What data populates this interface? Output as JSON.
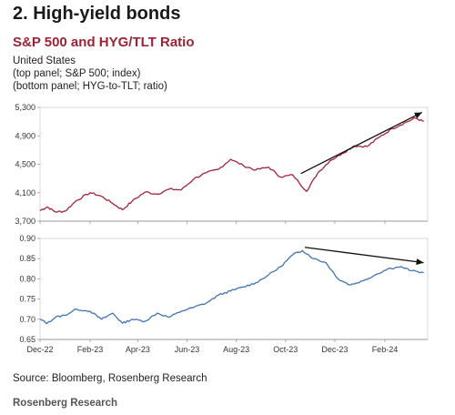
{
  "header": {
    "section_title": "2. High-yield bonds",
    "chart_title": "S&P 500 and HYG/TLT Ratio",
    "subtitle_lines": [
      "United States",
      "(top panel; S&P 500; index)",
      "(bottom panel; HYG-to-TLT; ratio)"
    ]
  },
  "footer": {
    "source": "Source: Bloomberg, Rosenberg Research",
    "brand": "Rosenberg Research"
  },
  "colors": {
    "title": "#9b2335",
    "spx_line": "#a3243b",
    "ratio_line": "#3f74b5",
    "trend_arrow": "#111111",
    "axis": "#999999"
  },
  "chart_data": [
    {
      "type": "line",
      "series": [
        {
          "x": [
            "2022-12-01",
            "2022-12-10",
            "2022-12-20",
            "2023-01-01",
            "2023-01-15",
            "2023-02-01",
            "2023-02-15",
            "2023-03-01",
            "2023-03-13",
            "2023-03-25",
            "2023-04-10",
            "2023-04-25",
            "2023-05-10",
            "2023-05-25",
            "2023-06-10",
            "2023-06-25",
            "2023-07-10",
            "2023-07-25",
            "2023-08-10",
            "2023-08-25",
            "2023-09-10",
            "2023-09-25",
            "2023-10-10",
            "2023-10-27",
            "2023-11-10",
            "2023-11-25",
            "2023-12-10",
            "2023-12-25",
            "2024-01-10",
            "2024-01-25",
            "2024-02-10",
            "2024-02-25",
            "2024-03-10",
            "2024-03-20"
          ],
          "values": [
            3850,
            3900,
            3830,
            3840,
            3990,
            4100,
            4050,
            3950,
            3860,
            3980,
            4110,
            4080,
            4150,
            4140,
            4300,
            4380,
            4430,
            4570,
            4480,
            4420,
            4460,
            4320,
            4350,
            4120,
            4380,
            4550,
            4650,
            4760,
            4750,
            4880,
            5000,
            5080,
            5150,
            5100
          ]
        }
      ],
      "xlim": [
        "2022-12-01",
        "2024-03-25"
      ],
      "ylim": [
        3700,
        5300
      ],
      "yticks": [
        "5,300",
        "4,900",
        "4,500",
        "4,100",
        "3,700"
      ],
      "trend_arrow": {
        "from": [
          "2023-10-20",
          4370
        ],
        "to": [
          "2024-03-18",
          5230
        ],
        "direction": "up"
      },
      "grid": false
    },
    {
      "type": "line",
      "series": [
        {
          "x": [
            "2022-12-01",
            "2022-12-10",
            "2022-12-20",
            "2023-01-01",
            "2023-01-15",
            "2023-02-01",
            "2023-02-15",
            "2023-03-01",
            "2023-03-13",
            "2023-03-25",
            "2023-04-10",
            "2023-04-25",
            "2023-05-10",
            "2023-05-25",
            "2023-06-10",
            "2023-06-25",
            "2023-07-10",
            "2023-07-25",
            "2023-08-10",
            "2023-08-25",
            "2023-09-10",
            "2023-09-25",
            "2023-10-10",
            "2023-10-22",
            "2023-11-05",
            "2023-11-20",
            "2023-12-05",
            "2023-12-20",
            "2024-01-05",
            "2024-01-20",
            "2024-02-05",
            "2024-02-20",
            "2024-03-05",
            "2024-03-20"
          ],
          "values": [
            0.7,
            0.69,
            0.705,
            0.71,
            0.725,
            0.72,
            0.7,
            0.715,
            0.69,
            0.7,
            0.695,
            0.715,
            0.705,
            0.72,
            0.73,
            0.74,
            0.76,
            0.77,
            0.78,
            0.79,
            0.81,
            0.83,
            0.86,
            0.87,
            0.85,
            0.84,
            0.8,
            0.785,
            0.795,
            0.81,
            0.825,
            0.83,
            0.82,
            0.815
          ]
        }
      ],
      "xlim": [
        "2022-12-01",
        "2024-03-25"
      ],
      "ylim": [
        0.65,
        0.9
      ],
      "yticks": [
        "0.90",
        "0.85",
        "0.80",
        "0.75",
        "0.70",
        "0.65"
      ],
      "xticks": [
        {
          "date": "2022-12-01",
          "label": "Dec-22"
        },
        {
          "date": "2023-02-01",
          "label": "Feb-23"
        },
        {
          "date": "2023-04-01",
          "label": "Apr-23"
        },
        {
          "date": "2023-06-01",
          "label": "Jun-23"
        },
        {
          "date": "2023-08-01",
          "label": "Aug-23"
        },
        {
          "date": "2023-10-01",
          "label": "Oct-23"
        },
        {
          "date": "2023-12-01",
          "label": "Dec-23"
        },
        {
          "date": "2024-02-01",
          "label": "Feb-24"
        }
      ],
      "trend_arrow": {
        "from": [
          "2023-10-25",
          0.878
        ],
        "to": [
          "2024-03-20",
          0.84
        ],
        "direction": "down"
      },
      "grid": false
    }
  ]
}
